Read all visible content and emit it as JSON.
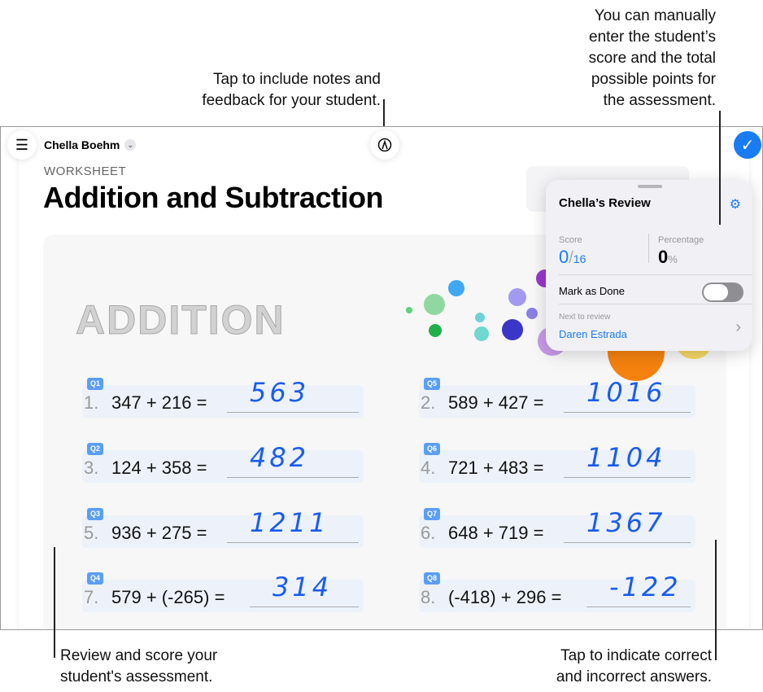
{
  "callouts": {
    "notes": [
      "Tap to include notes and",
      "feedback for your student."
    ],
    "score": [
      "You can manually",
      "enter the student’s",
      "score and the total",
      "possible points for",
      "the assessment."
    ],
    "review": [
      "Review and score your",
      "student's assessment."
    ],
    "correct": [
      "Tap to indicate correct",
      "and incorrect answers."
    ]
  },
  "header": {
    "student_name": "Chella Boehm",
    "kind": "WORKSHEET",
    "title": "Addition and Subtraction",
    "section": "ADDITION"
  },
  "icons": {
    "menu": "list-icon",
    "notes": "markup-pen-icon",
    "done": "checkmark-icon",
    "settings": "gear-icon",
    "next": "chevron-right-icon"
  },
  "colors": {
    "accent": "#1a7cf5",
    "handwriting": "#1a5cf0"
  },
  "questions": [
    {
      "badge": "Q1",
      "num": "1.",
      "problem": "347 + 216 =",
      "answer": "563"
    },
    {
      "badge": "Q2",
      "num": "3.",
      "problem": "124 + 358 =",
      "answer": "482"
    },
    {
      "badge": "Q3",
      "num": "5.",
      "problem": "936 + 275 =",
      "answer": "1211"
    },
    {
      "badge": "Q4",
      "num": "7.",
      "problem": "579 + (-265) =",
      "answer": "314"
    },
    {
      "badge": "Q5",
      "num": "2.",
      "problem": "589 + 427 =",
      "answer": "1016"
    },
    {
      "badge": "Q6",
      "num": "4.",
      "problem": "721 + 483 =",
      "answer": "1104"
    },
    {
      "badge": "Q7",
      "num": "6.",
      "problem": "648 + 719 =",
      "answer": "1367"
    },
    {
      "badge": "Q8",
      "num": "8.",
      "problem": "(-418) + 296 =",
      "answer": "-122"
    }
  ],
  "review": {
    "title": "Chella’s Review",
    "score_label": "Score",
    "score": "0",
    "total": "16",
    "percentage_label": "Percentage",
    "percentage": "0",
    "percent_sign": "%",
    "mark_done_label": "Mark as Done",
    "mark_done": false,
    "next_label": "Next to review",
    "next_student": "Daren Estrada"
  }
}
